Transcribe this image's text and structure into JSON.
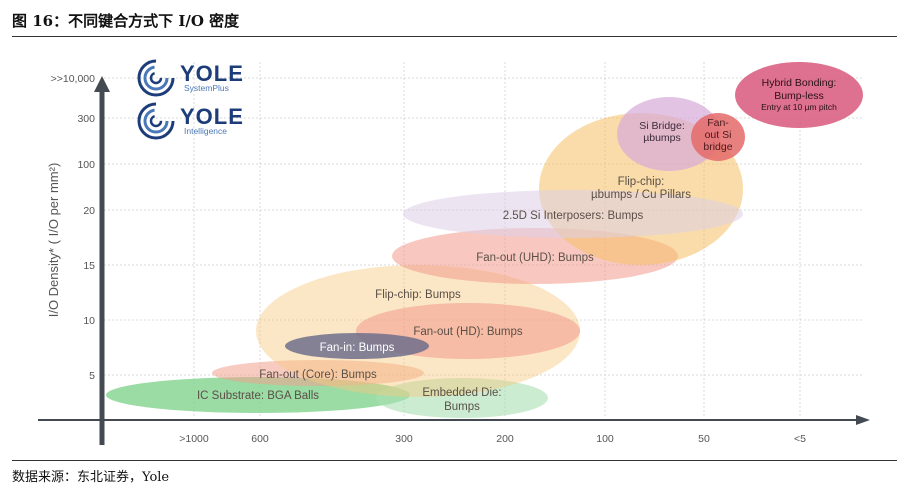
{
  "figure": {
    "title": "图 16：不同键合方式下 I/O 密度",
    "source": "数据来源：东北证券，Yole"
  },
  "logos": [
    {
      "name": "YOLE",
      "sub": "SystemPlus",
      "icon": "yole-swirl-icon"
    },
    {
      "name": "YOLE",
      "sub": "Intelligence",
      "icon": "yole-swirl-icon"
    }
  ],
  "chart_data": {
    "type": "bubble",
    "ylabel": "I/O Density* ( I/O per mm²)",
    "xlabel": "",
    "x_ticks": [
      ">1000",
      "600",
      "300",
      "200",
      "100",
      "50",
      "<5"
    ],
    "y_ticks": [
      ">>10,000",
      "300",
      "100",
      "20",
      "15",
      "10",
      "5"
    ],
    "x_scale": "categorical-descending",
    "y_scale": "categorical",
    "grid": true,
    "series": [
      {
        "label": "IC Substrate: BGA Balls",
        "color": "#7fd18b"
      },
      {
        "label": "Fan-out (Core): Bumps",
        "color": "#f3a08e"
      },
      {
        "label": "Embedded Die: Bumps",
        "color": "#a9dfb3"
      },
      {
        "label": "Flip-chip: Bumps",
        "color": "#f7c97e"
      },
      {
        "label": "Fan-out (HD): Bumps",
        "color": "#f2998a"
      },
      {
        "label": "Fan-in: Bumps",
        "color": "#6f6e8c"
      },
      {
        "label": "Fan-out (UHD): Bumps",
        "color": "#f29a8c"
      },
      {
        "label": "Flip-chip: µbumps / Cu Pillars",
        "color": "#f5c064"
      },
      {
        "label": "2.5D Si Interposers: Bumps",
        "color": "#dccfe6"
      },
      {
        "label": "Si Bridge: µbumps",
        "color": "#d7a9d9"
      },
      {
        "label": "Fan-out Si bridge",
        "color": "#e46a6a"
      },
      {
        "label": "Hybrid Bonding: Bump-less",
        "sublabel": "Entry at 10 µm pitch",
        "color": "#d95d80"
      }
    ]
  },
  "colors": {
    "axis": "#444a52",
    "grid": "#d8d8d8",
    "tick_text": "#555555",
    "label_text": "#5a5047"
  }
}
